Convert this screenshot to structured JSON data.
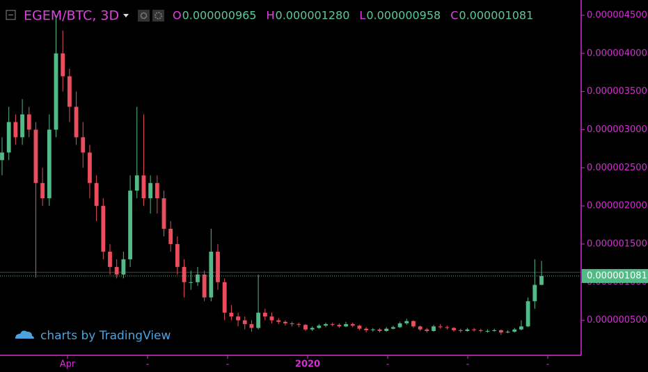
{
  "chart_data": {
    "type": "candlestick",
    "title": "EGEM/BTC, 3D",
    "ohlc_legend": [
      {
        "key": "O",
        "value": "0.000000965"
      },
      {
        "key": "H",
        "value": "0.000001280"
      },
      {
        "key": "L",
        "value": "0.000000958"
      },
      {
        "key": "C",
        "value": "0.000001081"
      }
    ],
    "up_color": "#53b987",
    "down_color": "#eb4d5c",
    "open": [
      2.6e-06,
      2.7e-06,
      3.1e-06,
      2.9e-06,
      3.2e-06,
      3e-06,
      2.3e-06,
      2.1e-06,
      3e-06,
      4e-06,
      3.7e-06,
      3.3e-06,
      2.9e-06,
      2.7e-06,
      2.3e-06,
      2e-06,
      1.4e-06,
      1.2e-06,
      1.1e-06,
      1.3e-06,
      2.2e-06,
      2.4e-06,
      2.1e-06,
      2.3e-06,
      2.1e-06,
      1.7e-06,
      1.5e-06,
      1.2e-06,
      1e-06,
      1e-06,
      1.1e-06,
      8e-07,
      1.4e-06,
      1e-06,
      6e-07,
      5.5e-07,
      5e-07,
      4.5e-07,
      4e-07,
      6e-07,
      5.5e-07,
      5e-07,
      4.8e-07,
      4.6e-07,
      4.5e-07,
      4.4e-07,
      3.8e-07,
      4e-07,
      4.3e-07,
      4.5e-07,
      4.4e-07,
      4.2e-07,
      4.5e-07,
      4.3e-07,
      3.9e-07,
      3.7e-07,
      3.8e-07,
      3.6e-07,
      3.9e-07,
      4.1e-07,
      4.6e-07,
      4.9e-07,
      4.2e-07,
      3.8e-07,
      3.6e-07,
      4.2e-07,
      4.1e-07,
      4e-07,
      3.7e-07,
      3.6e-07,
      3.8e-07,
      3.7e-07,
      3.6e-07,
      3.6e-07,
      3.7e-07,
      3.4e-07,
      3.5e-07,
      3.8e-07,
      4.2e-07,
      7.5e-07,
      9.65e-07
    ],
    "high": [
      2.9e-06,
      3.3e-06,
      3.2e-06,
      3.4e-06,
      3.3e-06,
      3.1e-06,
      2.5e-06,
      3.2e-06,
      4.5e-06,
      4.3e-06,
      3.8e-06,
      3.5e-06,
      3.1e-06,
      2.8e-06,
      2.4e-06,
      2.1e-06,
      1.5e-06,
      1.3e-06,
      1.4e-06,
      2.4e-06,
      3.3e-06,
      3.2e-06,
      2.4e-06,
      2.4e-06,
      2.2e-06,
      1.8e-06,
      1.6e-06,
      1.3e-06,
      1.15e-06,
      1.2e-06,
      1.15e-06,
      1.7e-06,
      1.5e-06,
      1.05e-06,
      7e-07,
      6e-07,
      5.5e-07,
      5e-07,
      1.1e-06,
      6.5e-07,
      6e-07,
      5.3e-07,
      5e-07,
      4.8e-07,
      4.7e-07,
      4.5e-07,
      4.2e-07,
      4.5e-07,
      4.7e-07,
      4.7e-07,
      4.6e-07,
      4.8e-07,
      4.7e-07,
      4.4e-07,
      4.1e-07,
      4e-07,
      4e-07,
      4.1e-07,
      4.3e-07,
      4.8e-07,
      5.2e-07,
      5e-07,
      4.3e-07,
      4e-07,
      4.4e-07,
      4.5e-07,
      4.3e-07,
      4.1e-07,
      3.9e-07,
      4e-07,
      4e-07,
      3.9e-07,
      3.8e-07,
      3.9e-07,
      3.8e-07,
      3.7e-07,
      4e-07,
      5e-07,
      8e-07,
      1.3e-06,
      1.28e-06
    ],
    "low": [
      2.4e-06,
      2.6e-06,
      2.8e-06,
      2.8e-06,
      2.9e-06,
      1.06e-06,
      2e-06,
      2e-06,
      2.9e-06,
      3.5e-06,
      3.1e-06,
      2.8e-06,
      2.5e-06,
      2.1e-06,
      1.8e-06,
      1.3e-06,
      1.1e-06,
      1.05e-06,
      1.05e-06,
      1.2e-06,
      2.1e-06,
      2e-06,
      1.9e-06,
      1.9e-06,
      1.6e-06,
      1.4e-06,
      1.1e-06,
      8e-07,
      9e-07,
      9.5e-07,
      7.5e-07,
      7.5e-07,
      9e-07,
      5e-07,
      5e-07,
      4.2e-07,
      3.8e-07,
      3.5e-07,
      3.8e-07,
      5e-07,
      4.6e-07,
      4.5e-07,
      4.3e-07,
      4.2e-07,
      4.1e-07,
      3.6e-07,
      3.6e-07,
      3.9e-07,
      4.1e-07,
      4.2e-07,
      4e-07,
      4.1e-07,
      4.1e-07,
      3.7e-07,
      3.4e-07,
      3.5e-07,
      3.4e-07,
      3.5e-07,
      3.8e-07,
      4e-07,
      4.4e-07,
      4e-07,
      3.6e-07,
      3.4e-07,
      3.5e-07,
      3.9e-07,
      3.8e-07,
      3.5e-07,
      3.4e-07,
      3.5e-07,
      3.5e-07,
      3.4e-07,
      3.4e-07,
      3.5e-07,
      3.1e-07,
      3.3e-07,
      3.4e-07,
      3.7e-07,
      4.1e-07,
      6.5e-07,
      9.58e-07
    ],
    "close": [
      2.7e-06,
      3.1e-06,
      2.9e-06,
      3.2e-06,
      3e-06,
      2.3e-06,
      2.1e-06,
      3e-06,
      4e-06,
      3.7e-06,
      3.3e-06,
      2.9e-06,
      2.7e-06,
      2.3e-06,
      2e-06,
      1.4e-06,
      1.2e-06,
      1.1e-06,
      1.3e-06,
      2.2e-06,
      2.4e-06,
      2.1e-06,
      2.3e-06,
      2.1e-06,
      1.7e-06,
      1.5e-06,
      1.2e-06,
      1e-06,
      1e-06,
      1.1e-06,
      8e-07,
      1.4e-06,
      1e-06,
      6e-07,
      5.5e-07,
      5e-07,
      4.5e-07,
      4e-07,
      6e-07,
      5.5e-07,
      5e-07,
      4.8e-07,
      4.6e-07,
      4.5e-07,
      4.4e-07,
      3.8e-07,
      4e-07,
      4.3e-07,
      4.5e-07,
      4.4e-07,
      4.2e-07,
      4.5e-07,
      4.3e-07,
      3.9e-07,
      3.7e-07,
      3.8e-07,
      3.6e-07,
      3.9e-07,
      4.1e-07,
      4.6e-07,
      4.9e-07,
      4.2e-07,
      3.8e-07,
      3.6e-07,
      4.2e-07,
      4.1e-07,
      4e-07,
      3.7e-07,
      3.6e-07,
      3.8e-07,
      3.7e-07,
      3.6e-07,
      3.6e-07,
      3.7e-07,
      3.4e-07,
      3.5e-07,
      3.8e-07,
      4.2e-07,
      7.5e-07,
      9.65e-07,
      1.081e-06
    ],
    "ylim": [
      5e-08,
      4.7e-06
    ],
    "yticks": [
      {
        "value": 5e-07,
        "label": "0.000000500"
      },
      {
        "value": 1e-06,
        "label": "0.000001000"
      },
      {
        "value": 1.5e-06,
        "label": "0.000001500"
      },
      {
        "value": 2e-06,
        "label": "0.000002000"
      },
      {
        "value": 2.5e-06,
        "label": "0.000002500"
      },
      {
        "value": 3e-06,
        "label": "0.000003000"
      },
      {
        "value": 3.5e-06,
        "label": "0.000003500"
      },
      {
        "value": 4e-06,
        "label": "0.000004000"
      },
      {
        "value": 4.5e-06,
        "label": "0.000004500"
      }
    ],
    "x_labels": [
      "Apr",
      "-",
      "-",
      "2020",
      "-",
      "-",
      "-"
    ],
    "last_price": {
      "value": 1.081e-06,
      "label": "0.000001081"
    },
    "horizontal_line": 1.13e-06,
    "watermark": "charts by TradingView"
  }
}
